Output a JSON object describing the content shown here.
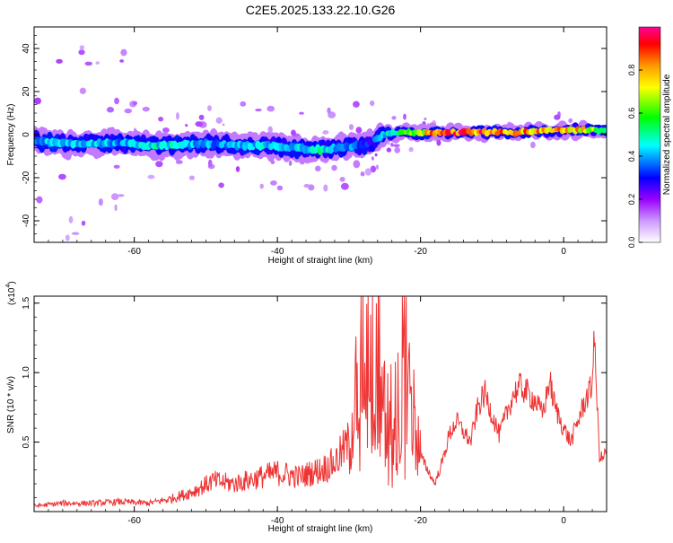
{
  "title": "C2E5.2025.133.22.10.G26",
  "chart_data": [
    {
      "type": "heatmap",
      "xlabel": "Height of straight line (km)",
      "ylabel": "Frequency (Hz)",
      "xlim": [
        -74,
        6
      ],
      "ylim": [
        -50,
        50
      ],
      "x_ticks": [
        -60,
        -40,
        -20,
        0
      ],
      "y_ticks": [
        -40,
        -20,
        0,
        20,
        40
      ],
      "colorbar": {
        "label": "Normalized spectral amplitude",
        "range": [
          0,
          1
        ],
        "ticks": [
          "0.0",
          "0.2",
          "0.4",
          "0.6",
          "0.8"
        ],
        "colors": [
          "#ffffff",
          "#cc99ff",
          "#9900ff",
          "#0000ff",
          "#00ffff",
          "#00ff00",
          "#ffff00",
          "#ff9900",
          "#ff0000",
          "#ff0099"
        ]
      },
      "ridge": {
        "x": [
          -74,
          -70,
          -66,
          -62,
          -58,
          -54,
          -50,
          -46,
          -42,
          -38,
          -34,
          -31,
          -29,
          -27,
          -25,
          -22,
          -18,
          -14,
          -10,
          -6,
          -2,
          2,
          6
        ],
        "freq": [
          -3,
          -4,
          -4,
          -4,
          -5,
          -5,
          -4,
          -5,
          -5,
          -6,
          -7,
          -6,
          -5,
          -4,
          0,
          1,
          1,
          1,
          1,
          1,
          2,
          2,
          2
        ],
        "amplitude": [
          0.4,
          0.45,
          0.45,
          0.4,
          0.5,
          0.45,
          0.4,
          0.4,
          0.45,
          0.45,
          0.5,
          0.35,
          0.4,
          0.3,
          0.45,
          0.6,
          0.85,
          0.9,
          0.9,
          0.85,
          0.85,
          0.8,
          0.55
        ]
      }
    },
    {
      "type": "line",
      "xlabel": "Height of straight line (km)",
      "ylabel": "SNR (10 * v/v)",
      "scale_label": "(x10",
      "scale_exp": "4",
      "scale_close": ")",
      "xlim": [
        -74,
        6
      ],
      "ylim": [
        0,
        1.55
      ],
      "x_ticks": [
        -60,
        -40,
        -20,
        0
      ],
      "y_ticks": [
        "0.5",
        "1.0",
        "1.5"
      ],
      "color": "#ee3333",
      "x": [
        -74,
        -70,
        -66,
        -62,
        -58,
        -55,
        -52,
        -49,
        -46,
        -43,
        -40,
        -37,
        -34,
        -32,
        -30,
        -29,
        -28,
        -27.3,
        -26.5,
        -25.5,
        -24.5,
        -23.5,
        -22.2,
        -21,
        -20,
        -19,
        -18,
        -17,
        -16,
        -15,
        -13,
        -12,
        -11,
        -10,
        -9,
        -8,
        -7,
        -6,
        -5,
        -4,
        -3,
        -2.5,
        -2,
        -1.2,
        0,
        1,
        2,
        3,
        4,
        4.2,
        5,
        5.5,
        6
      ],
      "y": [
        0.04,
        0.06,
        0.06,
        0.07,
        0.06,
        0.09,
        0.14,
        0.22,
        0.2,
        0.24,
        0.28,
        0.25,
        0.3,
        0.35,
        0.5,
        0.85,
        1.2,
        1.4,
        1.55,
        0.9,
        0.7,
        0.75,
        1.15,
        0.7,
        0.4,
        0.3,
        0.2,
        0.35,
        0.55,
        0.65,
        0.5,
        0.75,
        0.85,
        0.7,
        0.55,
        0.7,
        0.85,
        0.9,
        0.85,
        0.8,
        0.7,
        0.8,
        0.95,
        0.75,
        0.6,
        0.5,
        0.65,
        0.8,
        0.9,
        1.32,
        0.4,
        0.38,
        0.45
      ]
    }
  ]
}
